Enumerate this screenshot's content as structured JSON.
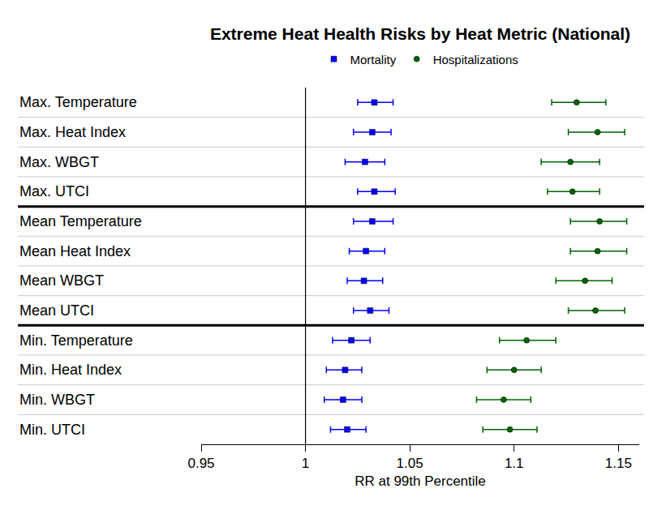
{
  "chart_data": {
    "type": "forest",
    "title": "Extreme Heat Health Risks by Heat Metric (National)",
    "x_label": "RR at 99th Percentile",
    "categories": [
      "Max. Temperature",
      "Max. Heat Index",
      "Max. WBGT",
      "Max. UTCI",
      "Mean Temperature",
      "Mean Heat Index",
      "Mean WBGT",
      "Mean UTCI",
      "Min. Temperature",
      "Min. Heat Index",
      "Min. WBGT",
      "Min. UTCI"
    ],
    "series": [
      {
        "name": "Mortality",
        "color": "#0000ff",
        "marker": "square",
        "values": [
          1.033,
          1.032,
          1.0285,
          1.033,
          1.032,
          1.029,
          1.028,
          1.031,
          1.022,
          1.019,
          1.018,
          1.02
        ],
        "lower": [
          1.025,
          1.023,
          1.019,
          1.025,
          1.023,
          1.021,
          1.02,
          1.023,
          1.013,
          1.01,
          1.009,
          1.012
        ],
        "upper": [
          1.042,
          1.041,
          1.038,
          1.043,
          1.042,
          1.038,
          1.037,
          1.04,
          1.031,
          1.027,
          1.027,
          1.029
        ]
      },
      {
        "name": "Hospitalizations",
        "color": "#006400",
        "marker": "circle",
        "values": [
          1.13,
          1.14,
          1.127,
          1.128,
          1.141,
          1.14,
          1.134,
          1.139,
          1.106,
          1.1,
          1.095,
          1.098
        ],
        "lower": [
          1.118,
          1.126,
          1.113,
          1.116,
          1.127,
          1.127,
          1.12,
          1.126,
          1.093,
          1.087,
          1.082,
          1.085
        ],
        "upper": [
          1.144,
          1.153,
          1.141,
          1.141,
          1.154,
          1.154,
          1.147,
          1.153,
          1.12,
          1.113,
          1.108,
          1.111
        ]
      }
    ],
    "reference_line": 1,
    "xlim": [
      0.95,
      1.16
    ],
    "xticks": [
      0.95,
      1,
      1.05,
      1.1,
      1.15
    ],
    "legend": "top",
    "grid": true
  }
}
